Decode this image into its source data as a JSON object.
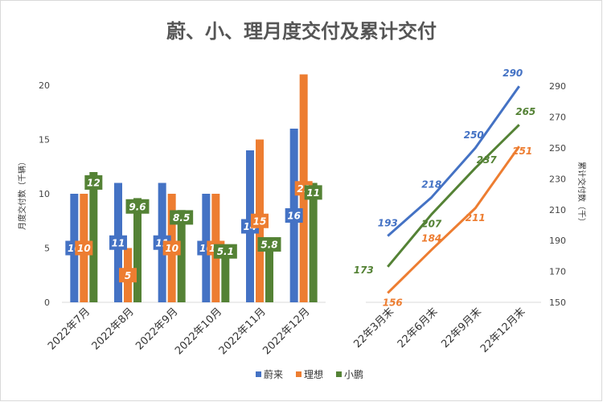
{
  "chart_data": [
    {
      "type": "bar",
      "title": "蔚、小、理月度交付及累计交付",
      "ylabel": "月度交付数（千辆）",
      "ylim": [
        0,
        20
      ],
      "yticks": [
        0,
        5,
        10,
        15,
        20
      ],
      "categories": [
        "2022年7月",
        "2022年8月",
        "2022年9月",
        "2022年10月",
        "2022年11月",
        "2022年12月"
      ],
      "series": [
        {
          "name": "蔚来",
          "color": "#4472C4",
          "values": [
            10,
            11,
            11,
            10,
            14,
            16
          ]
        },
        {
          "name": "理想",
          "color": "#ED7D31",
          "values": [
            10,
            5,
            10,
            10,
            15,
            21
          ]
        },
        {
          "name": "小鹏",
          "color": "#548235",
          "values": [
            12,
            9.6,
            8.5,
            5.1,
            5.8,
            11
          ]
        }
      ],
      "legend": "bottom"
    },
    {
      "type": "line",
      "ylabel": "累计交付数（千）",
      "ylim": [
        150,
        300
      ],
      "yticks": [
        150,
        170,
        190,
        210,
        230,
        250,
        270,
        290
      ],
      "yaxis_position": "right",
      "categories": [
        "22年3月末",
        "22年6月末",
        "22年9月末",
        "22年12月末"
      ],
      "series": [
        {
          "name": "蔚来",
          "color": "#4472C4",
          "values": [
            193,
            218,
            250,
            290
          ]
        },
        {
          "name": "理想",
          "color": "#ED7D31",
          "values": [
            156,
            184,
            211,
            251
          ]
        },
        {
          "name": "小鹏",
          "color": "#548235",
          "values": [
            173,
            207,
            237,
            265
          ]
        }
      ]
    }
  ]
}
